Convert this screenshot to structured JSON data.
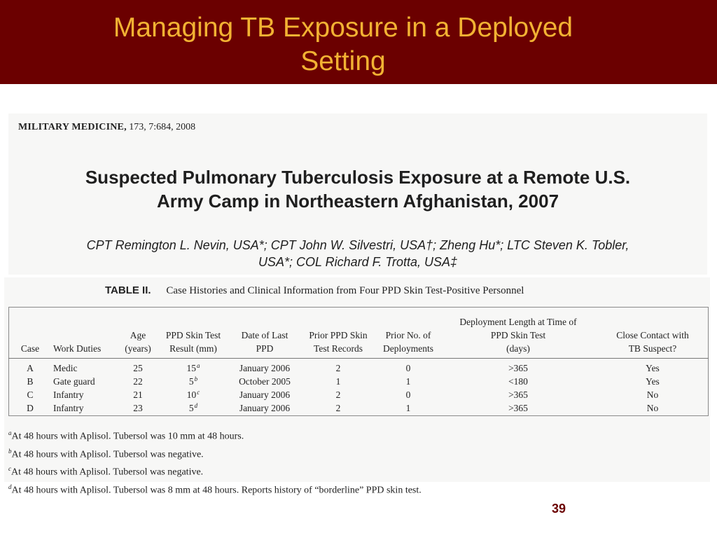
{
  "slide": {
    "title_line1": "Managing TB Exposure in a Deployed",
    "title_line2": "Setting",
    "page_number": "39",
    "colors": {
      "title_bar": "#6b0000",
      "title_text": "#f2b233",
      "page_number": "#6b0000"
    }
  },
  "article": {
    "journal": "MILITARY MEDICINE,",
    "citation": "173, 7:684, 2008",
    "title_line1": "Suspected Pulmonary Tuberculosis Exposure at a Remote U.S.",
    "title_line2": "Army Camp in Northeastern Afghanistan, 2007",
    "authors_line1": "CPT Remington L. Nevin, USA*; CPT John W. Silvestri, USA†; Zheng Hu*; LTC Steven K. Tobler,",
    "authors_line2": "USA*; COL Richard F. Trotta, USA‡"
  },
  "table": {
    "label": "TABLE II.",
    "caption": "Case Histories and Clinical Information from Four PPD Skin Test-Positive Personnel",
    "headers": {
      "case": "Case",
      "work_duties": "Work Duties",
      "age": [
        "Age",
        "(years)"
      ],
      "ppd_result": [
        "PPD Skin Test",
        "Result (mm)"
      ],
      "date_last_ppd": [
        "Date of Last",
        "PPD"
      ],
      "prior_records": [
        "Prior PPD Skin",
        "Test Records"
      ],
      "prior_deployments": [
        "Prior No. of",
        "Deployments"
      ],
      "deployment_length": [
        "Deployment Length at Time of",
        "PPD Skin Test",
        "(days)"
      ],
      "close_contact": [
        "Close Contact with",
        "TB Suspect?"
      ]
    },
    "rows": [
      {
        "case": "A",
        "work_duties": "Medic",
        "age": "25",
        "ppd_result": "15",
        "note": "a",
        "date": "January 2006",
        "prior_records": "2",
        "prior_deployments": "0",
        "deployment_length": ">365",
        "close_contact": "Yes"
      },
      {
        "case": "B",
        "work_duties": "Gate guard",
        "age": "22",
        "ppd_result": "5",
        "note": "b",
        "date": "October 2005",
        "prior_records": "1",
        "prior_deployments": "1",
        "deployment_length": "<180",
        "close_contact": "Yes"
      },
      {
        "case": "C",
        "work_duties": "Infantry",
        "age": "21",
        "ppd_result": "10",
        "note": "c",
        "date": "January 2006",
        "prior_records": "2",
        "prior_deployments": "0",
        "deployment_length": ">365",
        "close_contact": "No"
      },
      {
        "case": "D",
        "work_duties": "Infantry",
        "age": "23",
        "ppd_result": "5",
        "note": "d",
        "date": "January 2006",
        "prior_records": "2",
        "prior_deployments": "1",
        "deployment_length": ">365",
        "close_contact": "No"
      }
    ],
    "footnotes": [
      {
        "mark": "a",
        "text": "At 48 hours with Aplisol. Tubersol was 10 mm at 48 hours."
      },
      {
        "mark": "b",
        "text": "At 48 hours with Aplisol. Tubersol was negative."
      },
      {
        "mark": "c",
        "text": "At 48 hours with Aplisol. Tubersol was negative."
      },
      {
        "mark": "d",
        "text": "At 48 hours with Aplisol. Tubersol was 8 mm at 48 hours. Reports history of “borderline” PPD skin test."
      }
    ]
  }
}
